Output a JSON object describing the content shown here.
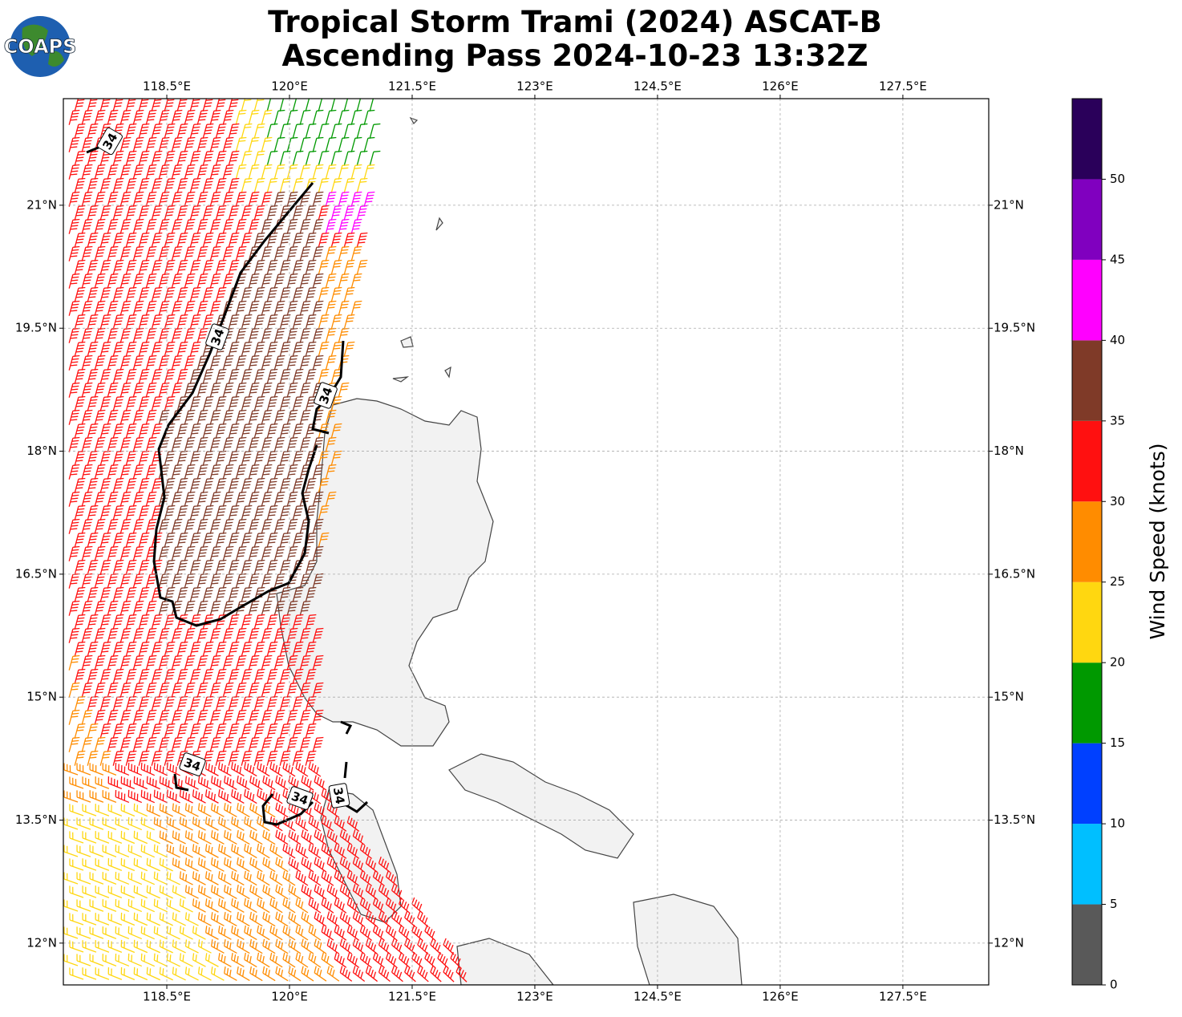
{
  "header": {
    "logo": "COAPS",
    "title_lines": [
      "Tropical Storm Trami (2024) ASCAT-B",
      "Ascending Pass 2024-10-23 13:32Z"
    ]
  },
  "map": {
    "xlim": [
      117.235,
      128.55
    ],
    "ylim": [
      11.49,
      22.3
    ],
    "grid": true,
    "xticks": [
      {
        "value": 118.5,
        "label": "118.5°E"
      },
      {
        "value": 120,
        "label": "120°E"
      },
      {
        "value": 121.5,
        "label": "121.5°E"
      },
      {
        "value": 123,
        "label": "123°E"
      },
      {
        "value": 124.5,
        "label": "124.5°E"
      },
      {
        "value": 126,
        "label": "126°E"
      },
      {
        "value": 127.5,
        "label": "127.5°E"
      }
    ],
    "yticks": [
      {
        "value": 12,
        "label": "12°N"
      },
      {
        "value": 13.5,
        "label": "13.5°N"
      },
      {
        "value": 15,
        "label": "15°N"
      },
      {
        "value": 16.5,
        "label": "16.5°N"
      },
      {
        "value": 18,
        "label": "18°N"
      },
      {
        "value": 19.5,
        "label": "19.5°N"
      },
      {
        "value": 21,
        "label": "21°N"
      }
    ],
    "contour_labels": [
      34,
      34,
      34,
      34,
      34,
      34
    ]
  },
  "colorbar": {
    "label": "Wind Speed (knots)",
    "bounds": [
      0,
      5,
      10,
      15,
      20,
      25,
      30,
      35,
      40,
      45,
      50,
      55
    ],
    "colors": [
      "#595959",
      "#00bfff",
      "#0040ff",
      "#009900",
      "#ffd710",
      "#ff8c00",
      "#ff1010",
      "#7f3a28",
      "#ff00ff",
      "#8000bf",
      "#2a005a"
    ],
    "ticks": [
      0,
      5,
      10,
      15,
      20,
      25,
      30,
      35,
      40,
      45,
      50
    ]
  }
}
